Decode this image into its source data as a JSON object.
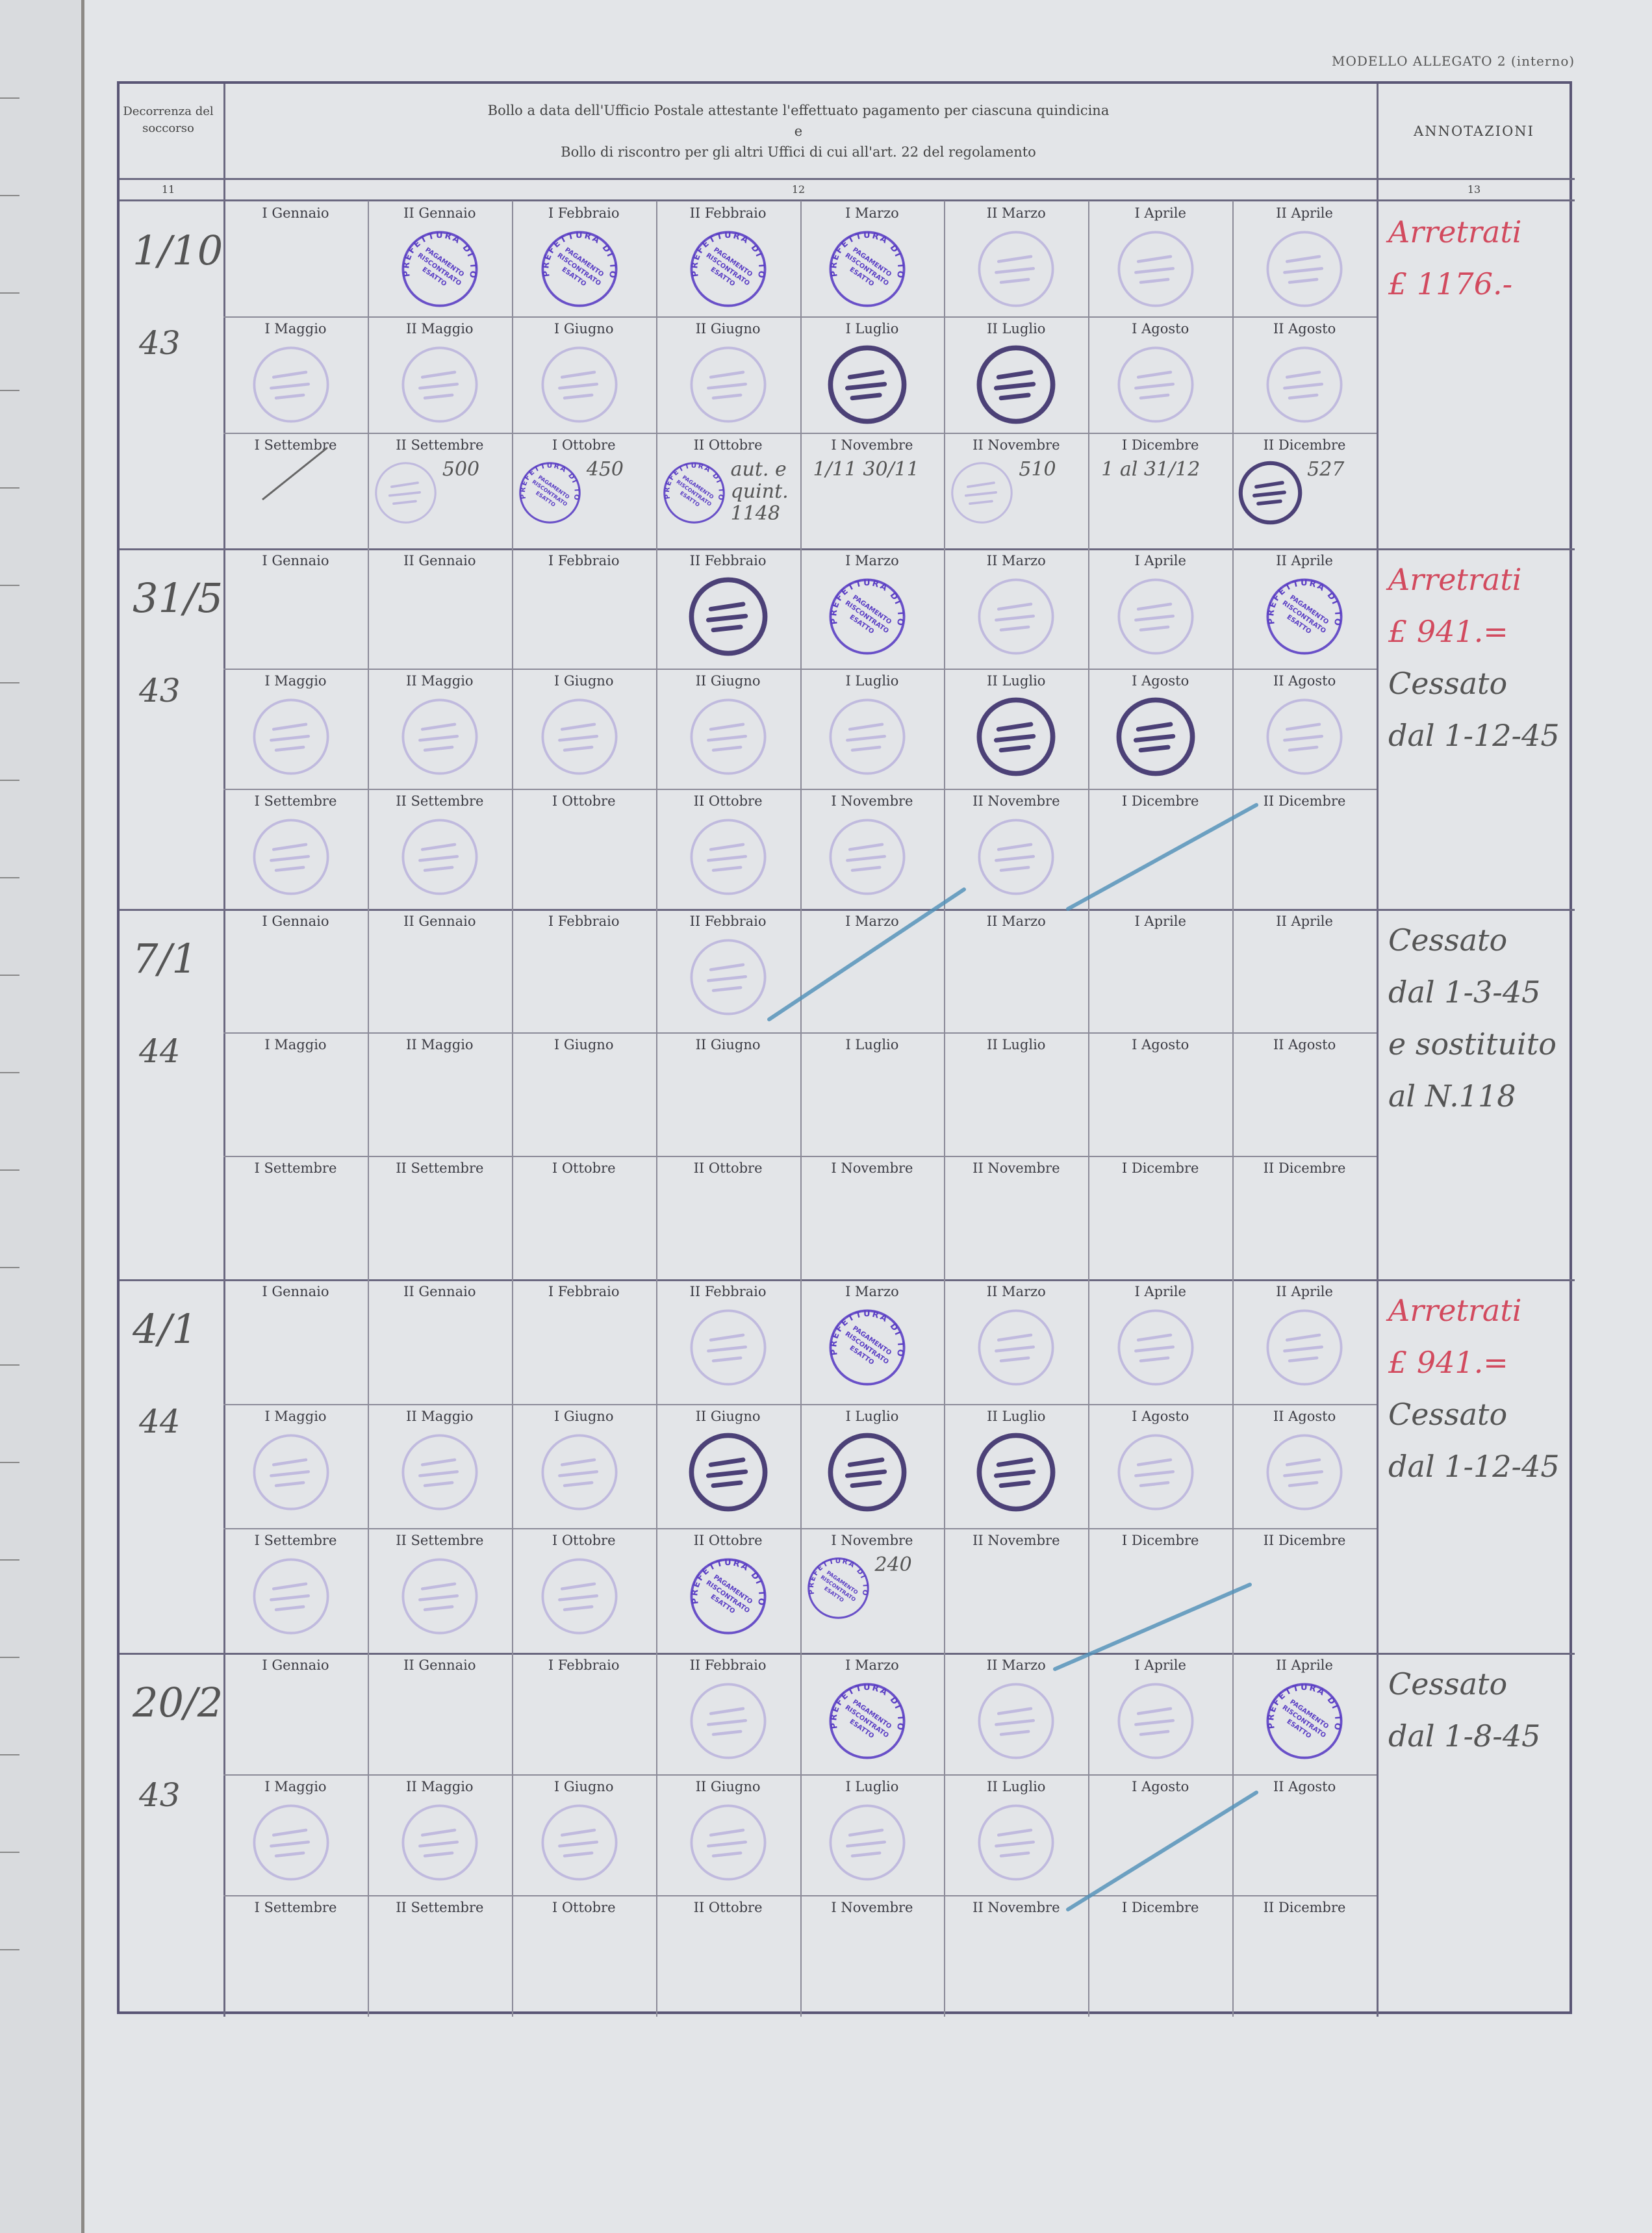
{
  "header": {
    "model_label": "MODELLO ALLEGATO 2 (interno)",
    "col_decorrenza": "Decorrenza del soccorso",
    "col_bollo_line1": "Bollo a data dell'Ufficio Postale attestante l'effettuato pagamento per ciascuna quindicina",
    "col_bollo_line2": "e",
    "col_bollo_line3": "Bollo di riscontro per gli altri Uffici di cui all'art. 22 del regolamento",
    "col_annotazioni": "ANNOTAZIONI",
    "col_numbers": [
      "11",
      "12",
      "13"
    ]
  },
  "period_labels": [
    "I Gennaio",
    "II Gennaio",
    "I Febbraio",
    "II Febbraio",
    "I Marzo",
    "II Marzo",
    "I Aprile",
    "II Aprile",
    "I Maggio",
    "II Maggio",
    "I Giugno",
    "II Giugno",
    "I Luglio",
    "II Luglio",
    "I Agosto",
    "II Agosto",
    "I Settembre",
    "II Settembre",
    "I Ottobre",
    "II Ottobre",
    "I Novembre",
    "II Novembre",
    "I Dicembre",
    "II Dicembre"
  ],
  "stamp_text": {
    "outer": "PREFETTURA DI TORINO",
    "inner1": "PAGAMENTO",
    "inner2": "RISCONTRATO",
    "inner3": "ESATTO"
  },
  "stamp_legend": {
    "P": "prefettura stamp",
    "f": "faint postal stamp",
    "d": "dark postal stamp",
    "-": "empty"
  },
  "colors": {
    "ink_red": "#d24a5e",
    "stamp_violet": "#6a4fc0",
    "pencil_blue": "#4f8fb8",
    "paper": "#e3e5e8"
  },
  "blocks": [
    {
      "date": "1/10",
      "year": "43",
      "stamps": "-PPPPfff",
      "stamps2": "ffffddff",
      "stamps3": "-fPP-f-d",
      "annotations": [
        "Arretrati",
        "£ 1176.-"
      ],
      "annotation_color": "red",
      "notes": [
        {
          "cell": 17,
          "text": "500"
        },
        {
          "cell": 18,
          "text": "450"
        },
        {
          "cell": 19,
          "text": "aut. e quint. 1148"
        },
        {
          "cell": 20,
          "text": "1/11 30/11"
        },
        {
          "cell": 21,
          "text": "510"
        },
        {
          "cell": 22,
          "text": "1 al 31/12"
        },
        {
          "cell": 23,
          "text": "527"
        }
      ]
    },
    {
      "date": "31/5",
      "year": "43",
      "stamps": "---dPffP",
      "stamps2": "fffffddf",
      "stamps3": "ff-fff--",
      "annotations": [
        "Arretrati",
        "£ 941.=",
        "Cessato",
        "dal 1-12-45"
      ],
      "annotation_color": "mixed",
      "notes": []
    },
    {
      "date": "7/1",
      "year": "44",
      "stamps": "---f----",
      "stamps2": "--------",
      "stamps3": "--------",
      "annotations": [
        "Cessato",
        "dal 1-3-45",
        "e sostituito",
        "al N.118"
      ],
      "annotation_color": "grey",
      "notes": []
    },
    {
      "date": "4/1",
      "year": "44",
      "stamps": "---fPfff",
      "stamps2": "fffdddff",
      "stamps3": "fffPP---",
      "annotations": [
        "Arretrati",
        "£ 941.=",
        "Cessato",
        "dal 1-12-45"
      ],
      "annotation_color": "mixed",
      "notes": [
        {
          "cell": 20,
          "text": "240"
        }
      ]
    },
    {
      "date": "20/2",
      "year": "43",
      "stamps": "---fPffP",
      "stamps2": "ffffff--",
      "stamps3": "--------",
      "annotations": [
        "Cessato",
        "dal 1-8-45"
      ],
      "annotation_color": "grey",
      "notes": []
    }
  ]
}
